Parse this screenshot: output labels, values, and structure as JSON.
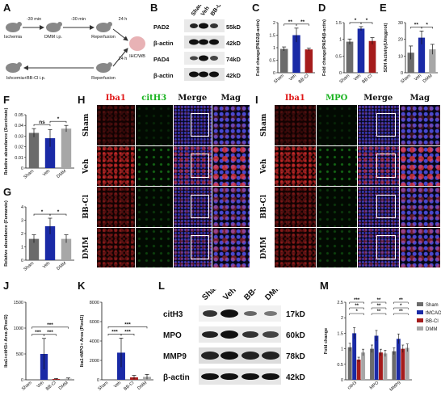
{
  "panel_labels": {
    "A": "A",
    "B": "B",
    "C": "C",
    "D": "D",
    "E": "E",
    "F": "F",
    "G": "G",
    "H": "H",
    "I": "I",
    "J": "J",
    "K": "K",
    "L": "L",
    "M": "M"
  },
  "timeline": {
    "top": [
      "Ischemia",
      "DMM i.p.",
      "Reperfusion",
      "IHC/WB"
    ],
    "timing": [
      "-30 min",
      "-30 min",
      "24 h",
      "24 h"
    ],
    "bottom": [
      "Ishcemia+BB-Cl i.p.",
      "Reperfusion"
    ]
  },
  "blot_B": {
    "lanes": [
      "Sham",
      "Veh",
      "BB-Cl"
    ],
    "rows": [
      {
        "name": "PAD2",
        "size": "55kD"
      },
      {
        "name": "β-actin",
        "size": "42kD"
      },
      {
        "name": "PAD4",
        "size": "74kD"
      },
      {
        "name": "β-actin",
        "size": "42kD"
      }
    ]
  },
  "blot_L": {
    "lanes": [
      "Sham",
      "Veh",
      "BB-Cl",
      "DMM"
    ],
    "rows": [
      {
        "name": "citH3",
        "size": "17kD"
      },
      {
        "name": "MPO",
        "size": "60kD"
      },
      {
        "name": "MMP9",
        "size": "78kD"
      },
      {
        "name": "β-actin",
        "size": "42kD"
      }
    ]
  },
  "grid_H": {
    "cols": [
      "Iba1",
      "citH3",
      "Merge",
      "Mag"
    ],
    "rows": [
      "Sham",
      "Veh",
      "BB-Cl",
      "DMM"
    ],
    "col_colors": [
      "#e01818",
      "#19b31f",
      "#111111",
      "#111111"
    ]
  },
  "grid_I": {
    "cols": [
      "Iba1",
      "MPO",
      "Merge",
      "Mag"
    ],
    "rows": [
      "Sham",
      "Veh",
      "BB-Cl",
      "DMM"
    ],
    "col_colors": [
      "#e01818",
      "#19b31f",
      "#111111",
      "#111111"
    ]
  },
  "colors": {
    "sham": "#6b6b6b",
    "veh": "#1a2aa6",
    "bbcl": "#a51c1c",
    "dmm": "#a7a7a7"
  },
  "chart_data": [
    {
      "id": "C",
      "type": "bar",
      "categories": [
        "Sham",
        "Veh",
        "BB-Cl"
      ],
      "values": [
        0.95,
        1.5,
        0.93
      ],
      "errors": [
        0.08,
        0.28,
        0.05
      ],
      "ylabel": "Fold change(PAD2/β-actin)",
      "ylim": [
        0,
        2
      ],
      "yticks": [
        0,
        0.5,
        1.0,
        1.5,
        2.0
      ],
      "sig": [
        "**",
        "**"
      ]
    },
    {
      "id": "D",
      "type": "bar",
      "categories": [
        "Sham",
        "Veh",
        "BB-Cl"
      ],
      "values": [
        0.93,
        1.32,
        0.95
      ],
      "errors": [
        0.08,
        0.06,
        0.1
      ],
      "ylabel": "Fold change(PAD4/β-actin)",
      "ylim": [
        0,
        1.5
      ],
      "yticks": [
        0,
        0.5,
        1.0,
        1.5
      ],
      "sig": [
        "*",
        "*"
      ]
    },
    {
      "id": "E",
      "type": "bar",
      "categories": [
        "Sham",
        "Veh",
        "DMM"
      ],
      "values": [
        12,
        21,
        14
      ],
      "errors": [
        4,
        4,
        3
      ],
      "ylabel": "SDH Activity(U/mgprot)",
      "ylim": [
        0,
        30
      ],
      "yticks": [
        0,
        10,
        20,
        30
      ],
      "sig": [
        "**",
        "*"
      ]
    },
    {
      "id": "F",
      "type": "bar",
      "categories": [
        "Sham",
        "Veh",
        "DMM"
      ],
      "values": [
        0.033,
        0.028,
        0.037
      ],
      "errors": [
        0.004,
        0.008,
        0.003
      ],
      "ylabel": "Relative abundance (Succinate)",
      "ylim": [
        0,
        0.05
      ],
      "yticks": [
        0,
        0.01,
        0.02,
        0.03,
        0.04,
        0.05
      ],
      "sig": [
        "ns",
        "*"
      ]
    },
    {
      "id": "G",
      "type": "bar",
      "categories": [
        "Sham",
        "Veh",
        "DMM"
      ],
      "values": [
        1.6,
        2.55,
        1.6
      ],
      "errors": [
        0.3,
        0.6,
        0.3
      ],
      "ylabel": "Relative abundance (Fumarate)",
      "ylim": [
        0,
        4
      ],
      "yticks": [
        0,
        1,
        2,
        3,
        4
      ],
      "sig": [
        "*",
        "*"
      ]
    },
    {
      "id": "J",
      "type": "bar",
      "categories": [
        "Sham",
        "Veh",
        "BB-Cl",
        "DMM"
      ],
      "values": [
        0,
        500,
        15,
        20
      ],
      "errors": [
        0,
        300,
        10,
        15
      ],
      "ylabel": "Iba1+citH3+ Area (Pixel2)",
      "ylim": [
        0,
        1500
      ],
      "yticks": [
        0,
        500,
        1000,
        1500
      ],
      "sig": [
        "***",
        "***",
        "***"
      ]
    },
    {
      "id": "K",
      "type": "bar",
      "categories": [
        "Sham",
        "Veh",
        "BB-Cl",
        "DMM"
      ],
      "values": [
        0,
        2800,
        250,
        300
      ],
      "errors": [
        0,
        1500,
        200,
        250
      ],
      "ylabel": "Iba1+MPO+ Area (Pixel2)",
      "ylim": [
        0,
        8000
      ],
      "yticks": [
        0,
        2000,
        4000,
        6000,
        8000
      ],
      "sig": [
        "***",
        "***",
        "***"
      ]
    },
    {
      "id": "M",
      "type": "bar",
      "categories": [
        "citH3",
        "MPO",
        "MMP9"
      ],
      "series": [
        {
          "name": "Sham",
          "values": [
            1.05,
            1.0,
            0.92
          ]
        },
        {
          "name": "tMCAO",
          "values": [
            1.5,
            1.42,
            1.32
          ]
        },
        {
          "name": "BB-Cl",
          "values": [
            0.65,
            0.88,
            1.0
          ]
        },
        {
          "name": "DMM",
          "values": [
            0.88,
            0.85,
            1.03
          ]
        }
      ],
      "ylabel": "Fold change",
      "ylim": [
        0,
        2.5
      ],
      "yticks": [
        0,
        0.5,
        1.0,
        1.5,
        2.0,
        2.5
      ],
      "sig": [
        "*",
        "**",
        "***",
        "**",
        "**",
        "**",
        "**",
        "*",
        "**"
      ]
    }
  ]
}
